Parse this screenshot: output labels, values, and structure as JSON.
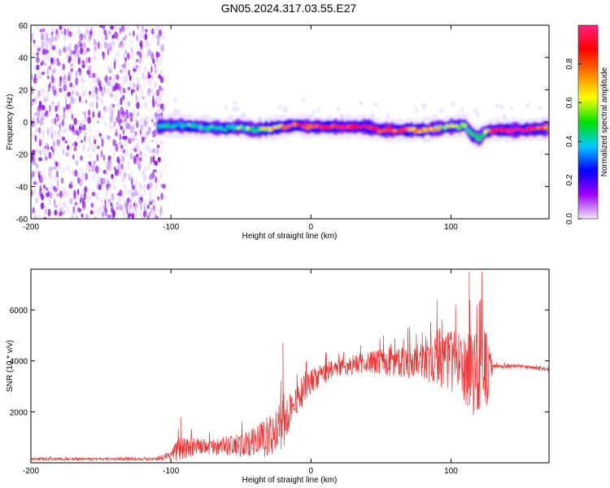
{
  "title": "GN05.2024.317.03.55.E27",
  "chart_data": [
    {
      "type": "heatmap",
      "xlabel": "Height of straight line (km)",
      "ylabel": "Frequency (Hz)",
      "xlim": [
        -200,
        170
      ],
      "ylim": [
        -60,
        60
      ],
      "xticks": [
        -200,
        -100,
        0,
        100
      ],
      "yticks": [
        -60,
        -40,
        -20,
        0,
        20,
        40,
        60
      ],
      "colorbar": {
        "label": "Normalized spectral amplitude",
        "range": [
          0.0,
          1.0
        ],
        "ticks": [
          0.0,
          0.2,
          0.4,
          0.6,
          0.8
        ],
        "colors": [
          "#f2e8ff",
          "#a000ff",
          "#0000ff",
          "#00c8ff",
          "#00e000",
          "#ffff00",
          "#ff8000",
          "#ff0000",
          "#ff2080"
        ]
      },
      "noise_region": {
        "x": [
          -200,
          -105
        ],
        "y": [
          -60,
          60
        ],
        "amplitude": 0.2
      },
      "band": {
        "x": [
          -110,
          -100,
          -80,
          -60,
          -50,
          -40,
          -30,
          -20,
          -10,
          0,
          20,
          40,
          50,
          60,
          80,
          100,
          110,
          115,
          120,
          125,
          130,
          150,
          170
        ],
        "freq": [
          -3,
          -2,
          -3,
          -4,
          -3,
          -5,
          -4,
          -3,
          -2,
          -3,
          -3,
          -3,
          -5,
          -5,
          -5,
          -3,
          -2,
          -8,
          -10,
          -6,
          -5,
          -5,
          -4
        ],
        "amplitude": [
          0.4,
          0.45,
          0.45,
          0.45,
          0.5,
          0.5,
          0.6,
          0.75,
          0.8,
          0.85,
          0.9,
          0.9,
          0.85,
          0.8,
          0.75,
          0.6,
          0.55,
          0.4,
          0.4,
          0.6,
          0.95,
          1.0,
          0.8
        ]
      }
    },
    {
      "type": "line",
      "xlabel": "Height of straight line (km)",
      "ylabel": "SNR (10 * v/v)",
      "xlim": [
        -200,
        170
      ],
      "ylim": [
        0,
        7600
      ],
      "xticks": [
        -200,
        -100,
        0,
        100
      ],
      "yticks": [
        2000,
        4000,
        6000
      ],
      "color": "#ee3333",
      "envelope": {
        "x": [
          -200,
          -150,
          -110,
          -100,
          -95,
          -80,
          -60,
          -45,
          -35,
          -25,
          -20,
          -15,
          -10,
          0,
          20,
          40,
          60,
          80,
          90,
          100,
          110,
          115,
          120,
          125,
          130,
          150,
          170
        ],
        "baseline": [
          150,
          150,
          150,
          300,
          600,
          700,
          700,
          800,
          1000,
          1300,
          1700,
          2200,
          2600,
          3200,
          3800,
          4000,
          4050,
          4100,
          4100,
          4150,
          4000,
          3800,
          3600,
          3700,
          3800,
          3800,
          3650
        ],
        "spread": [
          100,
          100,
          100,
          300,
          900,
          600,
          700,
          1000,
          1400,
          1800,
          2400,
          1400,
          1300,
          1000,
          700,
          800,
          1100,
          1500,
          1900,
          2300,
          2800,
          3300,
          3000,
          3300,
          200,
          150,
          150
        ]
      },
      "peaks": [
        {
          "x": -93,
          "y": 1800
        },
        {
          "x": -20,
          "y": 4700
        },
        {
          "x": -10,
          "y": 3500
        },
        {
          "x": 90,
          "y": 6400
        },
        {
          "x": 113,
          "y": 7500
        },
        {
          "x": 122,
          "y": 7500
        },
        {
          "x": 125,
          "y": 5000
        }
      ]
    }
  ]
}
